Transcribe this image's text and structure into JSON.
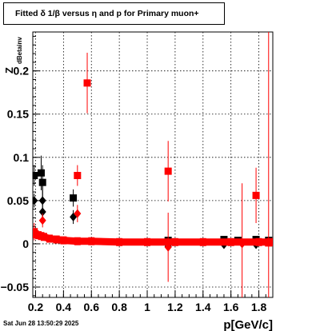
{
  "title": "Fitted δ  1/β  versus  η and p for Primary muon+",
  "timestamp": "Sat Jun 28 13:50:29 2025",
  "chart_data": {
    "type": "scatter",
    "title": "Fitted δ  1/β  versus  η and p for Primary muon+",
    "xlabel": "p[GeV/c]",
    "ylabel_main": "Z",
    "ylabel_sub": "dBetainv",
    "xlim": [
      0.18,
      1.9
    ],
    "ylim": [
      -0.062,
      0.245
    ],
    "grid": true,
    "x_ticks": [
      0.2,
      0.4,
      0.6,
      0.8,
      1.0,
      1.2,
      1.4,
      1.6,
      1.8
    ],
    "x_tick_labels": [
      "0.2",
      "0.4",
      "0.6",
      "0.8",
      "1",
      "1.2",
      "1.4",
      "1.6",
      "1.8"
    ],
    "y_ticks": [
      -0.05,
      0,
      0.05,
      0.1,
      0.15,
      0.2
    ],
    "y_tick_labels": [
      "−0.05",
      "0",
      "0.05",
      "0.1",
      "0.15",
      "0.2"
    ],
    "series": [
      {
        "color": "#000000",
        "marker": "square",
        "points": [
          {
            "x": 0.19,
            "y": 0.079,
            "err": 0.012
          },
          {
            "x": 0.24,
            "y": 0.082,
            "err": 0.02
          },
          {
            "x": 0.25,
            "y": 0.071,
            "err": 0.02
          },
          {
            "x": 0.47,
            "y": 0.053,
            "err": 0.01
          },
          {
            "x": 1.15,
            "y": 0.004,
            "err": 0.003
          },
          {
            "x": 1.55,
            "y": 0.005,
            "err": 0.003
          },
          {
            "x": 1.65,
            "y": 0.004,
            "err": 0.003
          },
          {
            "x": 1.78,
            "y": 0.005,
            "err": 0.004
          },
          {
            "x": 1.87,
            "y": 0.004,
            "err": 0.004
          }
        ]
      },
      {
        "color": "#000000",
        "marker": "diamond",
        "points": [
          {
            "x": 0.19,
            "y": 0.05,
            "err": 0.008
          },
          {
            "x": 0.25,
            "y": 0.05,
            "err": 0.02
          },
          {
            "x": 0.25,
            "y": 0.037,
            "err": 0.012
          },
          {
            "x": 0.47,
            "y": 0.031,
            "err": 0.008
          },
          {
            "x": 1.15,
            "y": -0.003,
            "err": 0.004
          },
          {
            "x": 1.55,
            "y": -0.001,
            "err": 0.003
          },
          {
            "x": 1.78,
            "y": -0.001,
            "err": 0.003
          }
        ]
      },
      {
        "color": "#ff0000",
        "marker": "square",
        "points": [
          {
            "x": 0.19,
            "y": 0.014,
            "err": 0.01
          },
          {
            "x": 0.5,
            "y": 0.079,
            "err": 0.012
          },
          {
            "x": 0.57,
            "y": 0.186,
            "err": 0.035
          },
          {
            "x": 1.15,
            "y": 0.084,
            "err": 0.035
          },
          {
            "x": 1.78,
            "y": 0.056,
            "err": 0.032
          },
          {
            "x": 1.87,
            "y": 0.001,
            "err": 0.25
          }
        ]
      },
      {
        "color": "#ff0000",
        "marker": "diamond",
        "points": [
          {
            "x": 0.25,
            "y": 0.027,
            "err": 0.008
          },
          {
            "x": 0.5,
            "y": 0.035,
            "err": 0.01
          },
          {
            "x": 1.15,
            "y": -0.004,
            "err": 0.04
          },
          {
            "x": 1.68,
            "y": 0.0,
            "err": 0.07
          }
        ]
      },
      {
        "color": "#ff0000",
        "marker": "band",
        "points": [
          {
            "x": 0.2,
            "y": 0.011
          },
          {
            "x": 0.22,
            "y": 0.01
          },
          {
            "x": 0.24,
            "y": 0.009
          },
          {
            "x": 0.26,
            "y": 0.008
          },
          {
            "x": 0.3,
            "y": 0.006
          },
          {
            "x": 0.35,
            "y": 0.005
          },
          {
            "x": 0.4,
            "y": 0.004
          },
          {
            "x": 0.5,
            "y": 0.003
          },
          {
            "x": 0.6,
            "y": 0.003
          },
          {
            "x": 0.8,
            "y": 0.002
          },
          {
            "x": 1.0,
            "y": 0.002
          },
          {
            "x": 1.2,
            "y": 0.002
          },
          {
            "x": 1.4,
            "y": 0.002
          },
          {
            "x": 1.6,
            "y": 0.002
          },
          {
            "x": 1.8,
            "y": 0.002
          },
          {
            "x": 1.88,
            "y": 0.002
          }
        ]
      }
    ]
  }
}
